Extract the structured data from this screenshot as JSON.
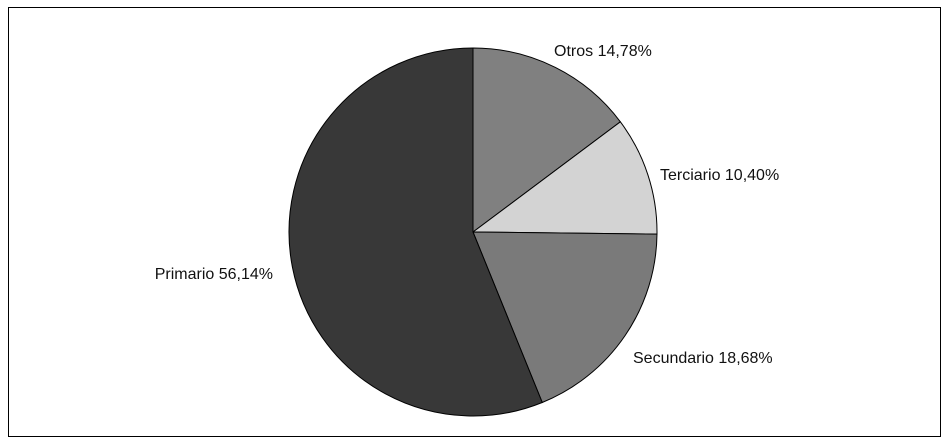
{
  "chart_data": {
    "type": "pie",
    "title": "",
    "start_angle_deg": 0,
    "direction": "clockwise",
    "slices": [
      {
        "label": "Otros",
        "value": 14.78,
        "display": "Otros 14,78%",
        "color": "#808080"
      },
      {
        "label": "Terciario",
        "value": 10.4,
        "display": "Terciario 10,40%",
        "color": "#d3d3d3"
      },
      {
        "label": "Secundario",
        "value": 18.68,
        "display": "Secundario 18,68%",
        "color": "#7a7a7a"
      },
      {
        "label": "Primario",
        "value": 56.14,
        "display": "Primario 56,14%",
        "color": "#383838"
      }
    ],
    "legend": "none",
    "slice_border_color": "#000000"
  }
}
